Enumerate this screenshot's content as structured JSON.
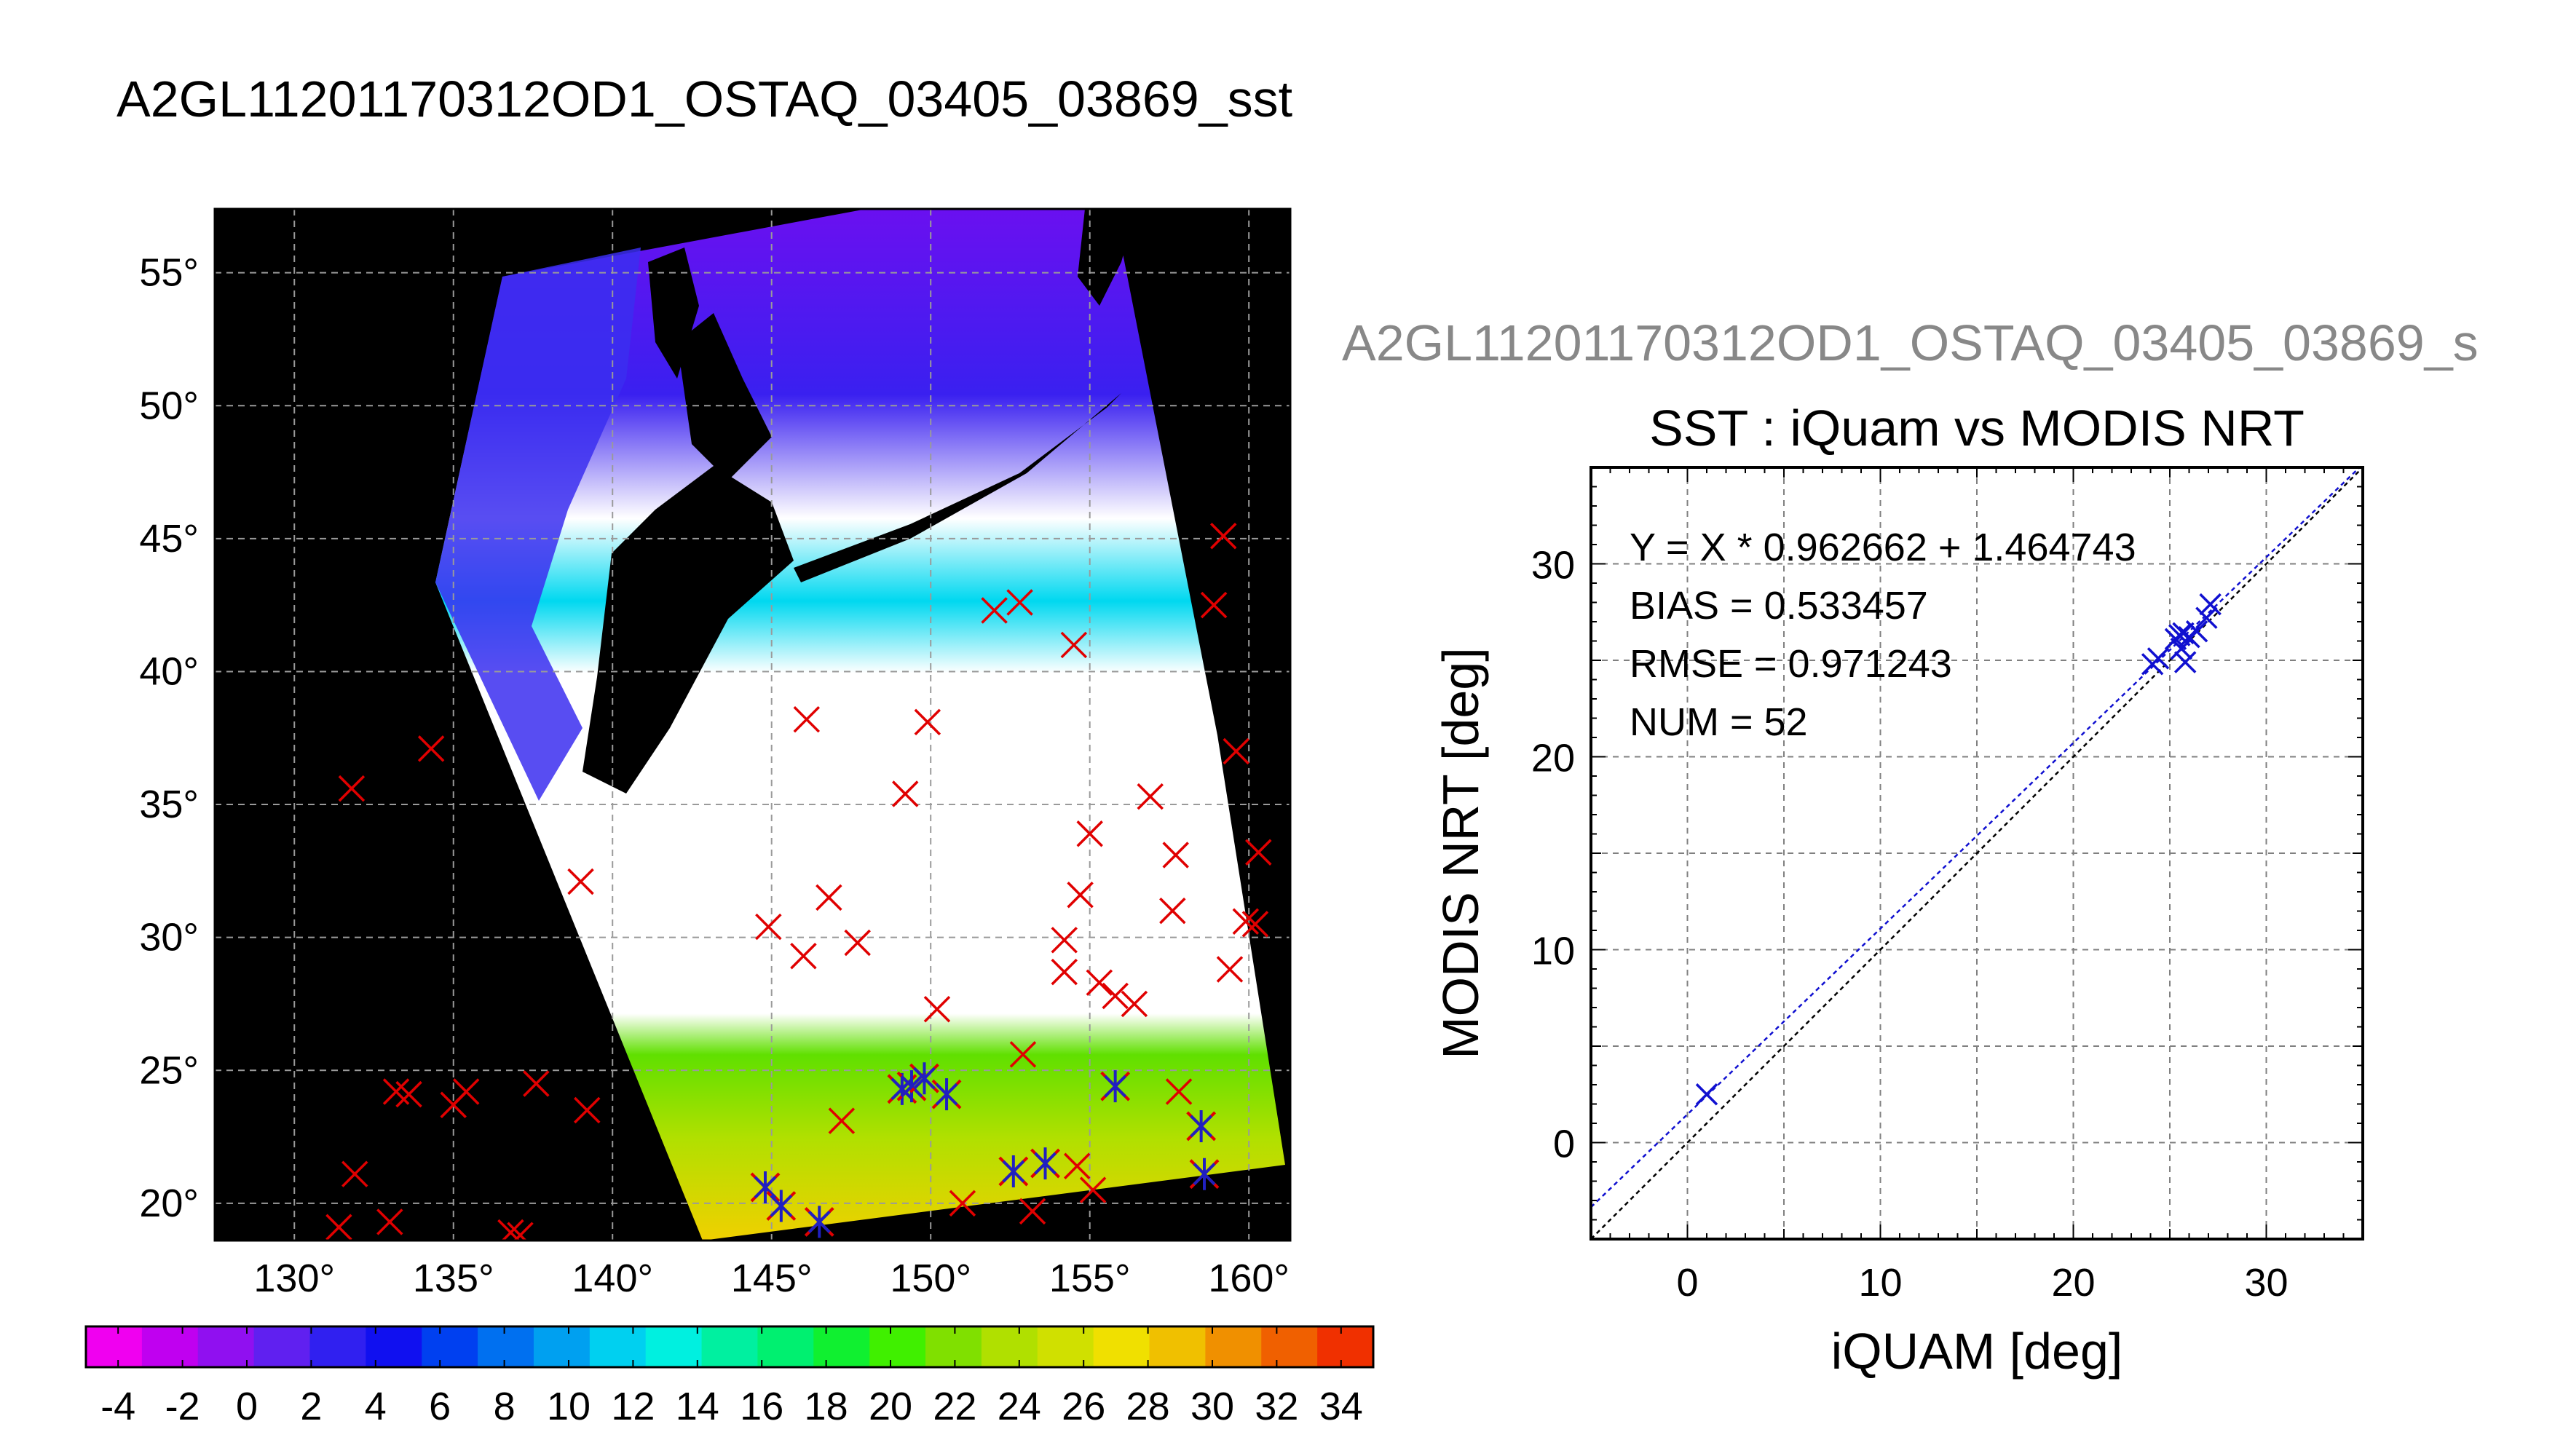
{
  "figure": {
    "main_title": "A2GL11201170312OD1_OSTAQ_03405_03869_sst",
    "secondary_title": "A2GL11201170312OD1_OSTAQ_03405_03869_s"
  },
  "chart_data": [
    {
      "type": "scatter",
      "name": "sst-map",
      "x_ticks": [
        "130°",
        "135°",
        "140°",
        "145°",
        "150°",
        "155°",
        "160°"
      ],
      "x_tick_values": [
        130,
        135,
        140,
        145,
        150,
        155,
        160
      ],
      "y_ticks": [
        "20°",
        "25°",
        "30°",
        "35°",
        "40°",
        "45°",
        "50°",
        "55°"
      ],
      "y_tick_values": [
        20,
        25,
        30,
        35,
        40,
        45,
        50,
        55
      ],
      "xlim": [
        127.5,
        161.3
      ],
      "ylim": [
        18.6,
        57.4
      ],
      "grid": true,
      "colorbar": {
        "ticks": [
          "-4",
          "-2",
          "0",
          "2",
          "4",
          "6",
          "8",
          "10",
          "12",
          "14",
          "16",
          "18",
          "20",
          "22",
          "24",
          "26",
          "28",
          "30",
          "32",
          "34"
        ],
        "range": [
          -5,
          35
        ],
        "colors": [
          "#f000f0",
          "#c000f0",
          "#9010f0",
          "#6020f0",
          "#3020f0",
          "#1010f0",
          "#0040f0",
          "#0070f0",
          "#00a0f0",
          "#00d0f0",
          "#00f0e0",
          "#00f0a0",
          "#00f070",
          "#10f030",
          "#40f000",
          "#80e000",
          "#b0e000",
          "#d0e000",
          "#f0e000",
          "#f0c000",
          "#f09000",
          "#f06000",
          "#f03000"
        ]
      },
      "points": [
        {
          "lon": 131.8,
          "lat": 35.6,
          "s": "x"
        },
        {
          "lon": 134.3,
          "lat": 37.1,
          "s": "x"
        },
        {
          "lon": 139.0,
          "lat": 32.1,
          "s": "x"
        },
        {
          "lon": 131.9,
          "lat": 21.1,
          "s": "x"
        },
        {
          "lon": 131.4,
          "lat": 19.1,
          "s": "x"
        },
        {
          "lon": 133.0,
          "lat": 19.3,
          "s": "x"
        },
        {
          "lon": 133.2,
          "lat": 24.2,
          "s": "x"
        },
        {
          "lon": 133.6,
          "lat": 24.1,
          "s": "x"
        },
        {
          "lon": 135.0,
          "lat": 23.7,
          "s": "x"
        },
        {
          "lon": 135.4,
          "lat": 24.2,
          "s": "x"
        },
        {
          "lon": 137.6,
          "lat": 24.5,
          "s": "x"
        },
        {
          "lon": 139.2,
          "lat": 23.5,
          "s": "x"
        },
        {
          "lon": 136.8,
          "lat": 18.9,
          "s": "x"
        },
        {
          "lon": 137.1,
          "lat": 18.8,
          "s": "x"
        },
        {
          "lon": 144.9,
          "lat": 30.4,
          "s": "x"
        },
        {
          "lon": 146.1,
          "lat": 38.2,
          "s": "x"
        },
        {
          "lon": 146.0,
          "lat": 29.3,
          "s": "x"
        },
        {
          "lon": 146.8,
          "lat": 31.5,
          "s": "x"
        },
        {
          "lon": 147.7,
          "lat": 29.8,
          "s": "x"
        },
        {
          "lon": 149.9,
          "lat": 38.1,
          "s": "x"
        },
        {
          "lon": 149.2,
          "lat": 35.4,
          "s": "x"
        },
        {
          "lon": 150.2,
          "lat": 27.3,
          "s": "x"
        },
        {
          "lon": 147.2,
          "lat": 23.1,
          "s": "x"
        },
        {
          "lon": 152.0,
          "lat": 42.3,
          "s": "x"
        },
        {
          "lon": 152.8,
          "lat": 42.6,
          "s": "x"
        },
        {
          "lon": 154.5,
          "lat": 41.0,
          "s": "x"
        },
        {
          "lon": 155.0,
          "lat": 33.9,
          "s": "x"
        },
        {
          "lon": 154.7,
          "lat": 31.6,
          "s": "x"
        },
        {
          "lon": 154.2,
          "lat": 29.9,
          "s": "x"
        },
        {
          "lon": 154.2,
          "lat": 28.7,
          "s": "x"
        },
        {
          "lon": 155.3,
          "lat": 28.3,
          "s": "x"
        },
        {
          "lon": 155.8,
          "lat": 27.8,
          "s": "x"
        },
        {
          "lon": 156.4,
          "lat": 27.5,
          "s": "x"
        },
        {
          "lon": 152.9,
          "lat": 25.6,
          "s": "x"
        },
        {
          "lon": 151.0,
          "lat": 20.0,
          "s": "x"
        },
        {
          "lon": 153.2,
          "lat": 19.7,
          "s": "x"
        },
        {
          "lon": 154.6,
          "lat": 21.4,
          "s": "x"
        },
        {
          "lon": 155.1,
          "lat": 20.5,
          "s": "x"
        },
        {
          "lon": 156.9,
          "lat": 35.3,
          "s": "x"
        },
        {
          "lon": 157.7,
          "lat": 33.1,
          "s": "x"
        },
        {
          "lon": 157.6,
          "lat": 31.0,
          "s": "x"
        },
        {
          "lon": 157.8,
          "lat": 24.2,
          "s": "x"
        },
        {
          "lon": 159.2,
          "lat": 45.1,
          "s": "x"
        },
        {
          "lon": 158.9,
          "lat": 42.5,
          "s": "x"
        },
        {
          "lon": 159.6,
          "lat": 37.0,
          "s": "x"
        },
        {
          "lon": 160.3,
          "lat": 33.2,
          "s": "x"
        },
        {
          "lon": 159.9,
          "lat": 30.6,
          "s": "x"
        },
        {
          "lon": 160.2,
          "lat": 30.5,
          "s": "x"
        },
        {
          "lon": 159.4,
          "lat": 28.8,
          "s": "x"
        },
        {
          "lon": 144.8,
          "lat": 20.6,
          "s": "b"
        },
        {
          "lon": 145.3,
          "lat": 19.9,
          "s": "b"
        },
        {
          "lon": 146.5,
          "lat": 19.3,
          "s": "b"
        },
        {
          "lon": 149.1,
          "lat": 24.3,
          "s": "b"
        },
        {
          "lon": 149.4,
          "lat": 24.4,
          "s": "b"
        },
        {
          "lon": 149.8,
          "lat": 24.7,
          "s": "b"
        },
        {
          "lon": 150.5,
          "lat": 24.1,
          "s": "b"
        },
        {
          "lon": 152.6,
          "lat": 21.2,
          "s": "b"
        },
        {
          "lon": 153.6,
          "lat": 21.5,
          "s": "b"
        },
        {
          "lon": 155.8,
          "lat": 24.4,
          "s": "b"
        },
        {
          "lon": 158.5,
          "lat": 22.9,
          "s": "b"
        },
        {
          "lon": 158.6,
          "lat": 21.1,
          "s": "b"
        }
      ]
    },
    {
      "type": "scatter",
      "name": "iquam-vs-modis",
      "title": "SST : iQuam vs MODIS NRT",
      "xlabel": "iQUAM [deg]",
      "ylabel": "MODIS NRT [deg]",
      "xlim": [
        -5,
        35
      ],
      "ylim": [
        -5,
        35
      ],
      "x_ticks": [
        "0",
        "10",
        "20",
        "30"
      ],
      "x_tick_values": [
        0,
        10,
        20,
        30
      ],
      "y_ticks": [
        "0",
        "10",
        "20",
        "30"
      ],
      "y_tick_values": [
        0,
        10,
        20,
        30
      ],
      "grid": true,
      "stats": [
        "Y = X * 0.962662 + 1.464743",
        "BIAS = 0.533457",
        "RMSE = 0.971243",
        "NUM = 52"
      ],
      "fit": {
        "slope": 0.962662,
        "intercept": 1.464743
      },
      "x": [
        1.0,
        24.1,
        24.4,
        25.3,
        25.5,
        25.6,
        25.7,
        25.8,
        26.0,
        26.4,
        26.9,
        27.1
      ],
      "y": [
        2.5,
        24.8,
        25.1,
        26.1,
        26.3,
        25.6,
        26.4,
        24.9,
        26.2,
        26.5,
        27.2,
        27.9
      ]
    }
  ]
}
